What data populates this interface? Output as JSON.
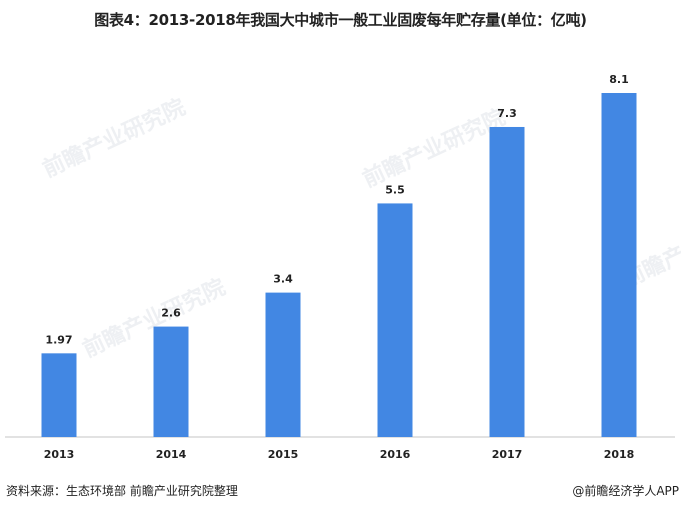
{
  "title": "图表4：2013-2018年我国大中城市一般工业固废每年贮存量(单位：亿吨)",
  "footer": {
    "source": "资料来源：生态环境部 前瞻产业研究院整理",
    "brand": "@前瞻经济学人APP"
  },
  "watermark": "前瞻产业研究院",
  "colors": {
    "bar": "#4287e3",
    "axis": "#d9d9d9"
  },
  "chart_data": {
    "type": "bar",
    "title": "图表4：2013-2018年我国大中城市一般工业固废每年贮存量(单位：亿吨)",
    "categories": [
      "2013",
      "2014",
      "2015",
      "2016",
      "2017",
      "2018"
    ],
    "values": [
      1.97,
      2.6,
      3.4,
      5.5,
      7.3,
      8.1
    ],
    "value_labels": [
      "1.97",
      "2.6",
      "3.4",
      "5.5",
      "7.3",
      "8.1"
    ],
    "ylim": [
      0,
      8.1
    ],
    "grid": false,
    "legend": "none"
  }
}
